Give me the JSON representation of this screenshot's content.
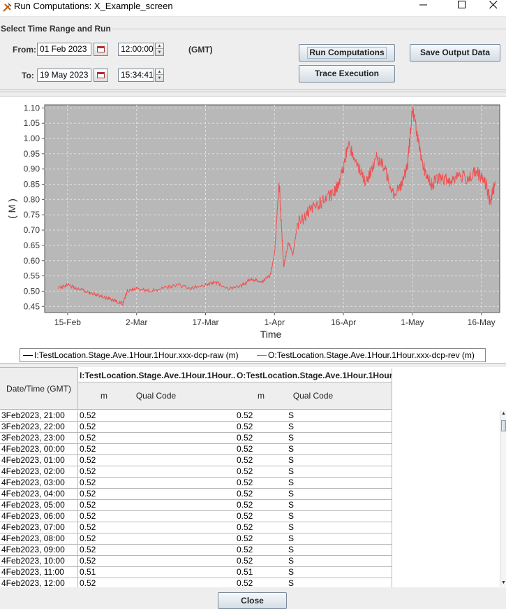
{
  "window": {
    "title": "Run Computations: X_Example_screen"
  },
  "controls": {
    "section_title": "Select Time Range and Run",
    "from_label": "From:",
    "from_date": "01 Feb 2023",
    "from_time": "12:00:00",
    "to_label": "To:",
    "to_date": "19 May 2023",
    "to_time": "15:34:41",
    "tz_label": "(GMT)",
    "run_button": "Run Computations",
    "trace_button": "Trace Execution",
    "save_button": "Save Output Data"
  },
  "chart_data": {
    "type": "line",
    "xlabel": "Time",
    "ylabel": "( M )",
    "x_ticks": [
      "15-Feb",
      "2-Mar",
      "17-Mar",
      "1-Apr",
      "16-Apr",
      "1-May",
      "16-May"
    ],
    "y_ticks": [
      "0.45",
      "0.50",
      "0.55",
      "0.60",
      "0.65",
      "0.70",
      "0.75",
      "0.80",
      "0.85",
      "0.90",
      "0.95",
      "1.00",
      "1.05",
      "1.10"
    ],
    "xlim": [
      "2023-02-10",
      "2023-05-20"
    ],
    "ylim": [
      0.43,
      1.11
    ],
    "grid": true,
    "plot_background": "#b8b8b8",
    "series": [
      {
        "name": "I:TestLocation.Stage.Ave.1Hour.1Hour.xxx-dcp-raw (m)",
        "color": "#000000",
        "points": []
      },
      {
        "name": "O:TestLocation.Stage.Ave.1Hour.1Hour.xxx-dcp-rev (m)",
        "color": "#f05050",
        "points": [
          [
            "2023-02-13",
            0.51
          ],
          [
            "2023-02-15",
            0.52
          ],
          [
            "2023-02-17",
            0.51
          ],
          [
            "2023-02-19",
            0.5
          ],
          [
            "2023-02-21",
            0.49
          ],
          [
            "2023-02-23",
            0.48
          ],
          [
            "2023-02-25",
            0.47
          ],
          [
            "2023-02-27",
            0.46
          ],
          [
            "2023-02-28",
            0.5
          ],
          [
            "2023-03-02",
            0.51
          ],
          [
            "2023-03-05",
            0.5
          ],
          [
            "2023-03-08",
            0.51
          ],
          [
            "2023-03-11",
            0.52
          ],
          [
            "2023-03-14",
            0.51
          ],
          [
            "2023-03-17",
            0.52
          ],
          [
            "2023-03-19",
            0.53
          ],
          [
            "2023-03-22",
            0.51
          ],
          [
            "2023-03-25",
            0.52
          ],
          [
            "2023-03-27",
            0.54
          ],
          [
            "2023-03-29",
            0.53
          ],
          [
            "2023-03-31",
            0.55
          ],
          [
            "2023-04-01",
            0.62
          ],
          [
            "2023-04-02",
            0.86
          ],
          [
            "2023-04-03",
            0.58
          ],
          [
            "2023-04-04",
            0.66
          ],
          [
            "2023-04-05",
            0.62
          ],
          [
            "2023-04-06",
            0.72
          ],
          [
            "2023-04-08",
            0.75
          ],
          [
            "2023-04-10",
            0.78
          ],
          [
            "2023-04-12",
            0.8
          ],
          [
            "2023-04-14",
            0.82
          ],
          [
            "2023-04-15",
            0.86
          ],
          [
            "2023-04-16",
            0.9
          ],
          [
            "2023-04-17",
            0.98
          ],
          [
            "2023-04-19",
            0.92
          ],
          [
            "2023-04-21",
            0.85
          ],
          [
            "2023-04-23",
            0.94
          ],
          [
            "2023-04-25",
            0.9
          ],
          [
            "2023-04-27",
            0.82
          ],
          [
            "2023-04-29",
            0.86
          ],
          [
            "2023-04-30",
            0.92
          ],
          [
            "2023-05-01",
            1.1
          ],
          [
            "2023-05-02",
            1.02
          ],
          [
            "2023-05-03",
            0.92
          ],
          [
            "2023-05-05",
            0.85
          ],
          [
            "2023-05-07",
            0.87
          ],
          [
            "2023-05-09",
            0.86
          ],
          [
            "2023-05-11",
            0.88
          ],
          [
            "2023-05-13",
            0.87
          ],
          [
            "2023-05-15",
            0.89
          ],
          [
            "2023-05-17",
            0.85
          ],
          [
            "2023-05-18",
            0.79
          ],
          [
            "2023-05-19",
            0.86
          ]
        ]
      }
    ],
    "legend_position": "bottom"
  },
  "table": {
    "datetime_header": "Date/Time (GMT)",
    "input_header": "I:TestLocation.Stage.Ave.1Hour.1Hour....",
    "output_header": "O:TestLocation.Stage.Ave.1Hour.1Hour....",
    "units_label": "m",
    "qual_label": "Qual Code",
    "rows": [
      {
        "dt": "3Feb2023, 21:00",
        "in_val": "0.52",
        "in_q": "",
        "out_val": "0.52",
        "out_q": "S"
      },
      {
        "dt": "3Feb2023, 22:00",
        "in_val": "0.52",
        "in_q": "",
        "out_val": "0.52",
        "out_q": "S"
      },
      {
        "dt": "3Feb2023, 23:00",
        "in_val": "0.52",
        "in_q": "",
        "out_val": "0.52",
        "out_q": "S"
      },
      {
        "dt": "4Feb2023, 00:00",
        "in_val": "0.52",
        "in_q": "",
        "out_val": "0.52",
        "out_q": "S"
      },
      {
        "dt": "4Feb2023, 01:00",
        "in_val": "0.52",
        "in_q": "",
        "out_val": "0.52",
        "out_q": "S"
      },
      {
        "dt": "4Feb2023, 02:00",
        "in_val": "0.52",
        "in_q": "",
        "out_val": "0.52",
        "out_q": "S"
      },
      {
        "dt": "4Feb2023, 03:00",
        "in_val": "0.52",
        "in_q": "",
        "out_val": "0.52",
        "out_q": "S"
      },
      {
        "dt": "4Feb2023, 04:00",
        "in_val": "0.52",
        "in_q": "",
        "out_val": "0.52",
        "out_q": "S"
      },
      {
        "dt": "4Feb2023, 05:00",
        "in_val": "0.52",
        "in_q": "",
        "out_val": "0.52",
        "out_q": "S"
      },
      {
        "dt": "4Feb2023, 06:00",
        "in_val": "0.52",
        "in_q": "",
        "out_val": "0.52",
        "out_q": "S"
      },
      {
        "dt": "4Feb2023, 07:00",
        "in_val": "0.52",
        "in_q": "",
        "out_val": "0.52",
        "out_q": "S"
      },
      {
        "dt": "4Feb2023, 08:00",
        "in_val": "0.52",
        "in_q": "",
        "out_val": "0.52",
        "out_q": "S"
      },
      {
        "dt": "4Feb2023, 09:00",
        "in_val": "0.52",
        "in_q": "",
        "out_val": "0.52",
        "out_q": "S"
      },
      {
        "dt": "4Feb2023, 10:00",
        "in_val": "0.52",
        "in_q": "",
        "out_val": "0.52",
        "out_q": "S"
      },
      {
        "dt": "4Feb2023, 11:00",
        "in_val": "0.51",
        "in_q": "",
        "out_val": "0.51",
        "out_q": "S"
      },
      {
        "dt": "4Feb2023, 12:00",
        "in_val": "0.52",
        "in_q": "",
        "out_val": "0.52",
        "out_q": "S"
      }
    ]
  },
  "footer": {
    "close_button": "Close"
  }
}
